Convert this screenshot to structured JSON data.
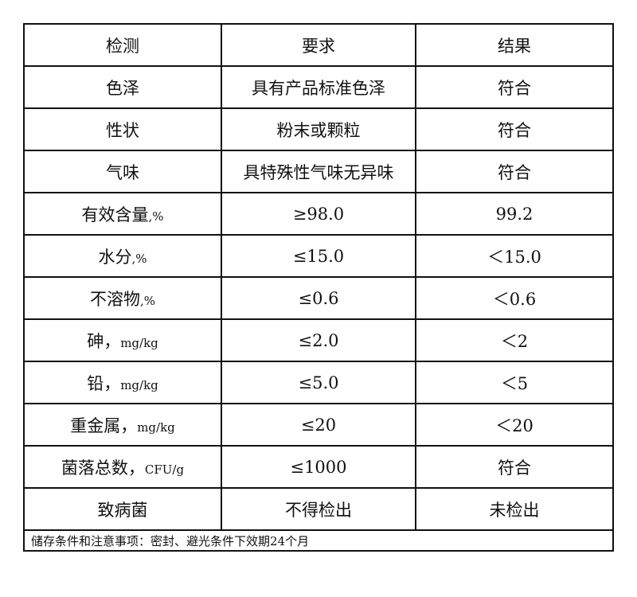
{
  "header": [
    "检测",
    "要求",
    "结果"
  ],
  "rows": [
    {
      "item": "色泽",
      "unit": "",
      "req": "具有产品标准色泽",
      "res": "符合"
    },
    {
      "item": "性状",
      "unit": "",
      "req": "粉末或颗粒",
      "res": "符合"
    },
    {
      "item": "气味",
      "unit": "",
      "req": "具特殊性气味无异味",
      "res": "符合"
    },
    {
      "item": "有效含量",
      "unit": ",%",
      "req": "≥98.0",
      "res": "99.2"
    },
    {
      "item": "水分",
      "unit": ",%",
      "req": "≤15.0",
      "res": "＜15.0"
    },
    {
      "item": "不溶物",
      "unit": ",%",
      "req": "≤0.6",
      "res": "＜0.6"
    },
    {
      "item": "砷，",
      "unit": "mg/kg",
      "req": "≤2.0",
      "res": "＜2"
    },
    {
      "item": "铅，",
      "unit": "mg/kg",
      "req": "≤5.0",
      "res": "＜5"
    },
    {
      "item": "重金属，",
      "unit": "mg/kg",
      "req": "≤20",
      "res": "＜20"
    },
    {
      "item": "菌落总数，",
      "unit": "CFU/g",
      "req": "≤1000",
      "res": "符合"
    },
    {
      "item": "致病菌",
      "unit": "",
      "req": "不得检出",
      "res": "未检出"
    }
  ],
  "footer": "储存条件和注意事项：密封、避光条件下效期24个月"
}
